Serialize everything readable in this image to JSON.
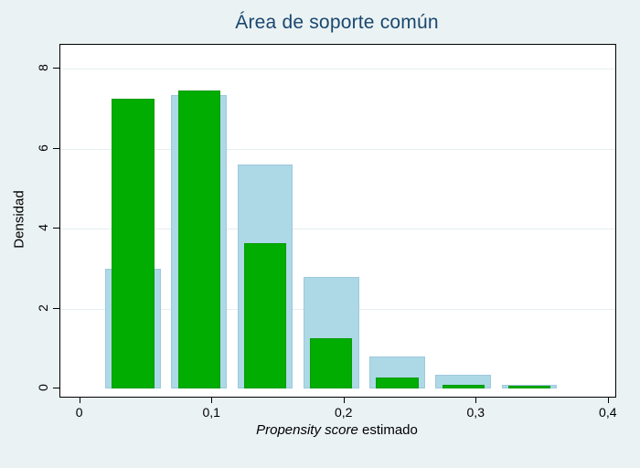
{
  "colors": {
    "canvas_bg": "#eaf2f3",
    "plot_bg": "#ffffff",
    "title": "#1a476f",
    "axis": "#000000",
    "gridline": "#e4eef0",
    "green_bar": "#00ad00",
    "green_bar_border": "#0a9b0a",
    "blue_bar": "#add8e6",
    "blue_bar_border": "#9ec9dd"
  },
  "chart_data": {
    "type": "bar",
    "title": "Área de soporte común",
    "ylabel": "Densidad",
    "xlabel_italic": "Propensity score",
    "xlabel_regular": " estimado",
    "grid": true,
    "legend": "none",
    "xlim": [
      -0.015,
      0.405
    ],
    "ylim": [
      -0.2,
      8.6
    ],
    "x_ticks": {
      "values": [
        0,
        0.1,
        0.2,
        0.3,
        0.4
      ],
      "labels": [
        "0",
        "0,1",
        "0,2",
        "0,3",
        "0,4"
      ]
    },
    "y_ticks": {
      "values": [
        0,
        2,
        4,
        6,
        8
      ],
      "labels": [
        "0",
        "2",
        "4",
        "6",
        "8"
      ]
    },
    "bin_centers": [
      0.04,
      0.09,
      0.14,
      0.19,
      0.24,
      0.29,
      0.34
    ],
    "bin_width": 0.05,
    "series": [
      {
        "name": "light_blue",
        "color_key": "blue_bar",
        "border_key": "blue_bar_border",
        "bar_width": 0.042,
        "values": [
          3.0,
          7.35,
          5.6,
          2.8,
          0.8,
          0.35,
          0.1
        ]
      },
      {
        "name": "green",
        "color_key": "green_bar",
        "border_key": "green_bar_border",
        "bar_width": 0.032,
        "values": [
          7.25,
          7.45,
          3.63,
          1.27,
          0.28,
          0.1,
          0.07
        ]
      }
    ]
  }
}
